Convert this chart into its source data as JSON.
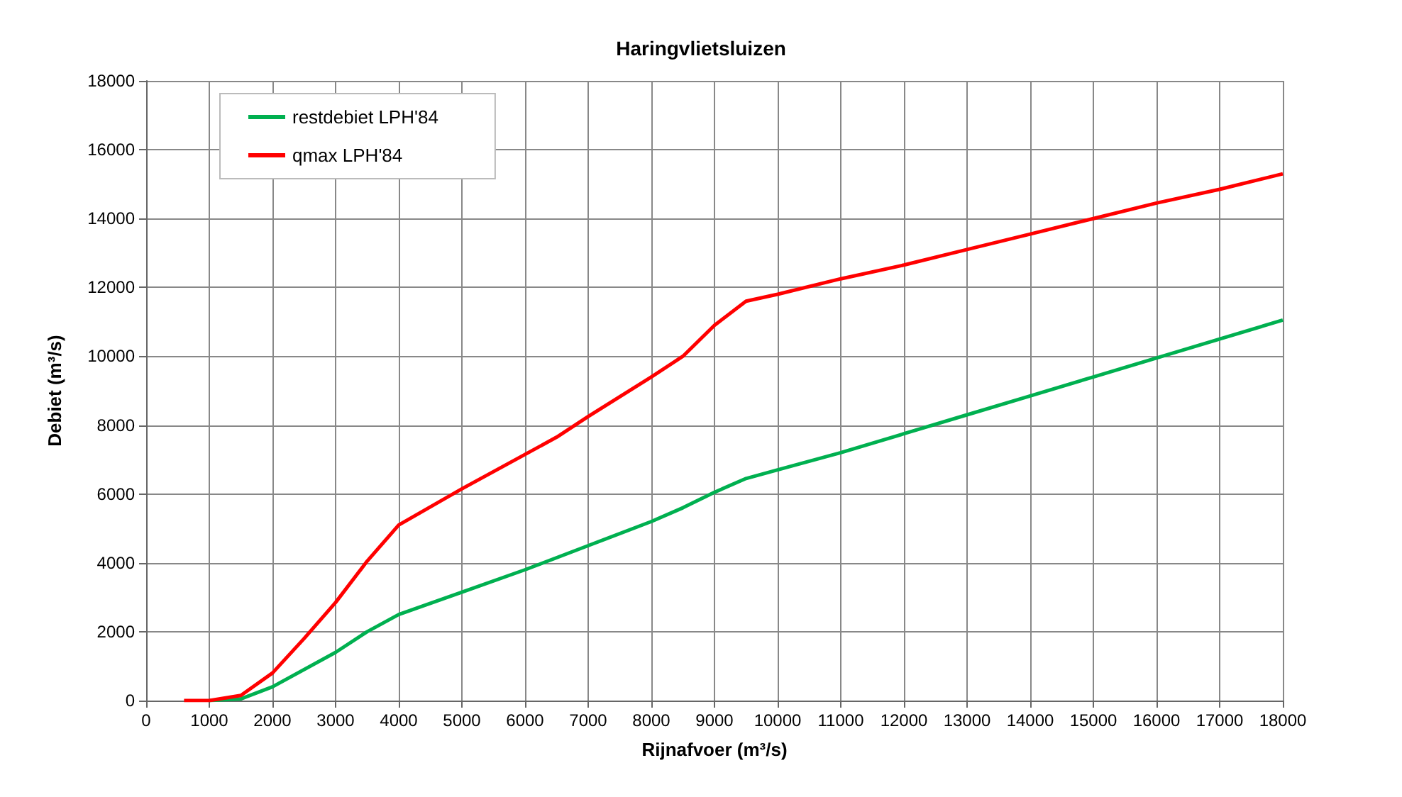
{
  "chart_data": {
    "type": "line",
    "title": "Haringvlietsluizen",
    "xlabel": "Rijnafvoer (m³/s)",
    "ylabel": "Debiet (m³/s)",
    "xlim": [
      0,
      18000
    ],
    "xticks": [
      0,
      1000,
      2000,
      3000,
      4000,
      5000,
      6000,
      7000,
      8000,
      9000,
      10000,
      11000,
      12000,
      13000,
      14000,
      15000,
      16000,
      17000,
      18000
    ],
    "ylim": [
      0,
      18000
    ],
    "yticks": [
      0,
      2000,
      4000,
      6000,
      8000,
      10000,
      12000,
      14000,
      16000,
      18000
    ],
    "grid": true,
    "legend": "top left",
    "marker": "none",
    "line_style": "solid",
    "series": [
      {
        "name": "restdebiet LPH'84",
        "color": "#00b050",
        "x": [
          1000,
          1500,
          2000,
          3000,
          3500,
          4000,
          5000,
          6000,
          7000,
          8000,
          8500,
          9000,
          9500,
          10000,
          11000,
          12000,
          13000,
          14000,
          15000,
          16000,
          17000,
          18000
        ],
        "values": [
          0,
          50,
          400,
          1400,
          2000,
          2500,
          3150,
          3800,
          4500,
          5200,
          5600,
          6050,
          6450,
          6700,
          7200,
          7750,
          8300,
          8850,
          9400,
          9950,
          10500,
          11050
        ]
      },
      {
        "name": "qmax LPH'84",
        "color": "#ff0000",
        "x": [
          600,
          1000,
          1500,
          2000,
          2500,
          3000,
          3500,
          4000,
          5000,
          6000,
          6500,
          7000,
          8000,
          8500,
          9000,
          9500,
          10000,
          11000,
          12000,
          13000,
          14000,
          15000,
          16000,
          17000,
          18000
        ],
        "values": [
          0,
          0,
          150,
          800,
          1800,
          2850,
          4050,
          5100,
          6150,
          7150,
          7650,
          8250,
          9400,
          10000,
          10900,
          11600,
          11800,
          12250,
          12650,
          13100,
          13550,
          14000,
          14450,
          14850,
          15300
        ]
      }
    ]
  }
}
